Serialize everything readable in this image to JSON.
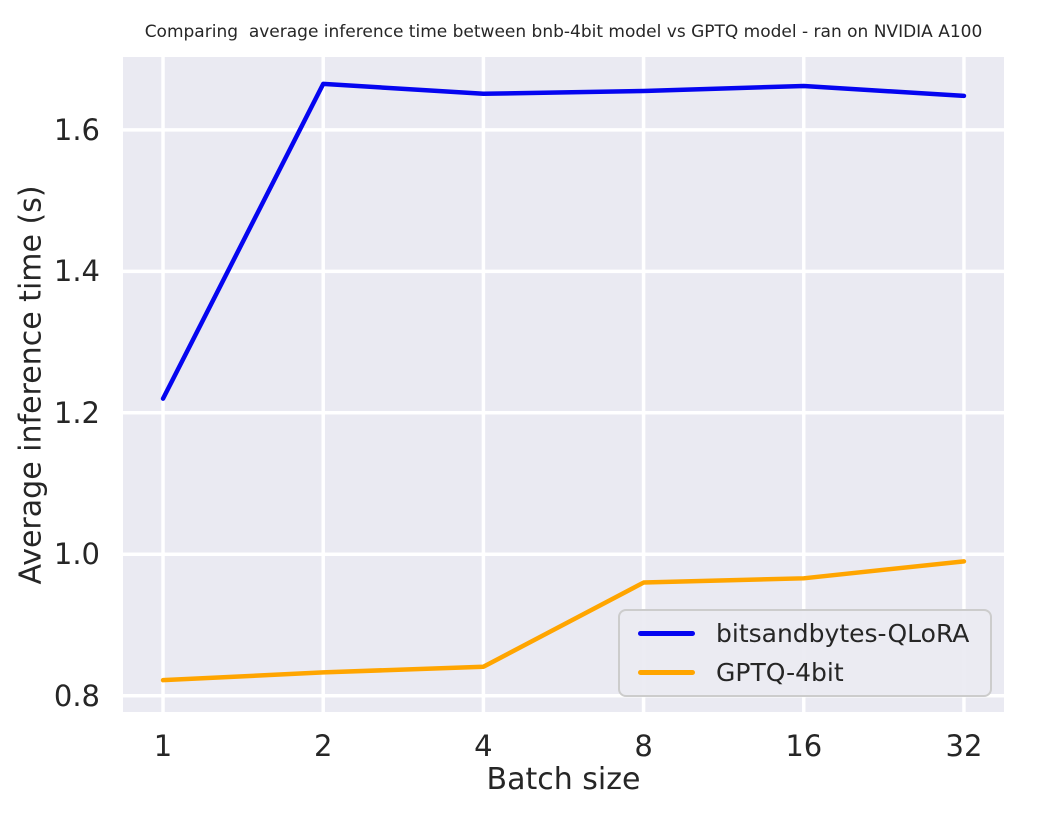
{
  "chart_data": {
    "type": "line",
    "title": "Comparing  average inference time between bnb-4bit model vs GPTQ model - ran on NVIDIA A100",
    "xlabel": "Batch size",
    "ylabel": "Average inference time (s)",
    "categories": [
      "1",
      "2",
      "4",
      "8",
      "16",
      "32"
    ],
    "x_scale": "categorical-equal-spacing",
    "series": [
      {
        "name": "bitsandbytes-QLoRA",
        "color": "#0505f0",
        "values": [
          1.22,
          1.665,
          1.651,
          1.655,
          1.662,
          1.648
        ]
      },
      {
        "name": "GPTQ-4bit",
        "color": "#ffa500",
        "values": [
          0.822,
          0.833,
          0.841,
          0.96,
          0.966,
          0.99
        ]
      }
    ],
    "ytick_labels": [
      "0.8",
      "1.0",
      "1.2",
      "1.4",
      "1.6"
    ],
    "ylim": [
      0.777,
      1.703
    ],
    "grid": true,
    "grid_color": "#ffffff",
    "plot_background": "#eaeaf2",
    "figure_background": "#ffffff",
    "text_color": "#262626",
    "legend": {
      "position": "lower right",
      "entries": [
        "bitsandbytes-QLoRA",
        "GPTQ-4bit"
      ]
    }
  }
}
